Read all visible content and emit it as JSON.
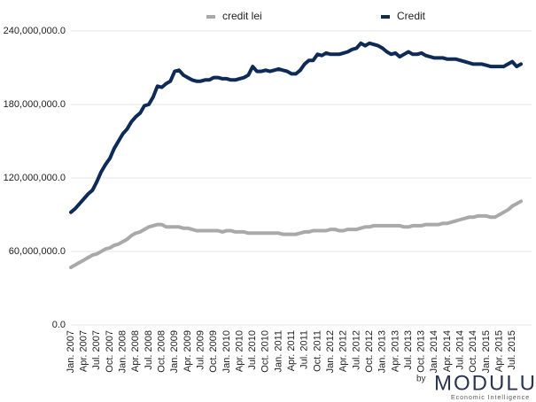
{
  "chart_data": {
    "type": "line",
    "categories": [
      "Jan. 2007",
      null,
      null,
      "Apr. 2007",
      null,
      null,
      "Jul. 2007",
      null,
      null,
      "Oct. 2007",
      null,
      null,
      "Jan. 2008",
      null,
      null,
      "Apr. 2008",
      null,
      null,
      "Jul. 2008",
      null,
      null,
      "Oct. 2008",
      null,
      null,
      "Jan. 2009",
      null,
      null,
      "Apr. 2009",
      null,
      null,
      "Jul. 2009",
      null,
      null,
      "Oct. 2009",
      null,
      null,
      "Jan. 2010",
      null,
      null,
      "Apr. 2010",
      null,
      null,
      "Jul. 2010",
      null,
      null,
      "Oct. 2010",
      null,
      null,
      "Jan. 2011",
      null,
      null,
      "Apr. 2011",
      null,
      null,
      "Jul. 2011",
      null,
      null,
      "Oct. 2011",
      null,
      null,
      "Jan. 2012",
      null,
      null,
      "Apr. 2012",
      null,
      null,
      "Jul. 2012",
      null,
      null,
      "Oct. 2012",
      null,
      null,
      "Jan. 2013",
      null,
      null,
      "Apr. 2013",
      null,
      null,
      "Jul. 2013",
      null,
      null,
      "Oct. 2013",
      null,
      null,
      "Jan. 2014",
      null,
      null,
      "Apr. 2014",
      null,
      null,
      "Jul. 2014",
      null,
      null,
      "Oct. 2014",
      null,
      null,
      "Jan. 2015",
      null,
      null,
      "Apr. 2015",
      null,
      null,
      "Jul. 2015",
      null,
      null
    ],
    "series": [
      {
        "name": "credit lei",
        "color": "#a9a9a9",
        "values": [
          47000000,
          49000000,
          51000000,
          53000000,
          55000000,
          57000000,
          58000000,
          60000000,
          62000000,
          63000000,
          65000000,
          66000000,
          68000000,
          70000000,
          73000000,
          75000000,
          76000000,
          78000000,
          80000000,
          81000000,
          82000000,
          82000000,
          80000000,
          80000000,
          80000000,
          80000000,
          79000000,
          79000000,
          78000000,
          77000000,
          77000000,
          77000000,
          77000000,
          77000000,
          77000000,
          76000000,
          77000000,
          77000000,
          76000000,
          76000000,
          76000000,
          75000000,
          75000000,
          75000000,
          75000000,
          75000000,
          75000000,
          75000000,
          75000000,
          74000000,
          74000000,
          74000000,
          74000000,
          75000000,
          76000000,
          76000000,
          77000000,
          77000000,
          77000000,
          77000000,
          78000000,
          78000000,
          77000000,
          77000000,
          78000000,
          78000000,
          78000000,
          79000000,
          80000000,
          80000000,
          81000000,
          81000000,
          81000000,
          81000000,
          81000000,
          81000000,
          81000000,
          80000000,
          80000000,
          81000000,
          81000000,
          81000000,
          82000000,
          82000000,
          82000000,
          82000000,
          83000000,
          83000000,
          84000000,
          85000000,
          86000000,
          87000000,
          88000000,
          88000000,
          89000000,
          89000000,
          89000000,
          88000000,
          88000000,
          90000000,
          92000000,
          94000000,
          97000000,
          99000000,
          101000000
        ]
      },
      {
        "name": "Credit",
        "color": "#0e2a57",
        "values": [
          92000000,
          95000000,
          99000000,
          103000000,
          107000000,
          110000000,
          117000000,
          125000000,
          131000000,
          136000000,
          144000000,
          150000000,
          156000000,
          160000000,
          166000000,
          170000000,
          173000000,
          179000000,
          180000000,
          186000000,
          195000000,
          194000000,
          197000000,
          199000000,
          207000000,
          208000000,
          204000000,
          202000000,
          200000000,
          199000000,
          199000000,
          200000000,
          200000000,
          202000000,
          202000000,
          201000000,
          201000000,
          200000000,
          200000000,
          201000000,
          202000000,
          204000000,
          211000000,
          207000000,
          207000000,
          208000000,
          207000000,
          208000000,
          209000000,
          208000000,
          207000000,
          205000000,
          205000000,
          208000000,
          213000000,
          216000000,
          216000000,
          221000000,
          220000000,
          222000000,
          221000000,
          221000000,
          221000000,
          222000000,
          223000000,
          225000000,
          226000000,
          230000000,
          228000000,
          230000000,
          229000000,
          228000000,
          226000000,
          223000000,
          221000000,
          222000000,
          219000000,
          221000000,
          223000000,
          221000000,
          221000000,
          222000000,
          220000000,
          219000000,
          218000000,
          218000000,
          218000000,
          217000000,
          217000000,
          217000000,
          216000000,
          215000000,
          214000000,
          213000000,
          213000000,
          213000000,
          212000000,
          211000000,
          211000000,
          211000000,
          211000000,
          213000000,
          215000000,
          211000000,
          213000000
        ]
      }
    ],
    "ylim": [
      0,
      240000000
    ],
    "yticks": [
      {
        "value": 0,
        "label": "0.0"
      },
      {
        "value": 60000000,
        "label": "60,000,000.0"
      },
      {
        "value": 120000000,
        "label": "120,000,000.0"
      },
      {
        "value": 180000000,
        "label": "180,000,000.0"
      },
      {
        "value": 240000000,
        "label": "240,000,000.0"
      }
    ],
    "grid": true,
    "legend": "top"
  },
  "logo": {
    "by": "by",
    "name": "MODULUS",
    "tagline": "Economic Intelligence"
  }
}
